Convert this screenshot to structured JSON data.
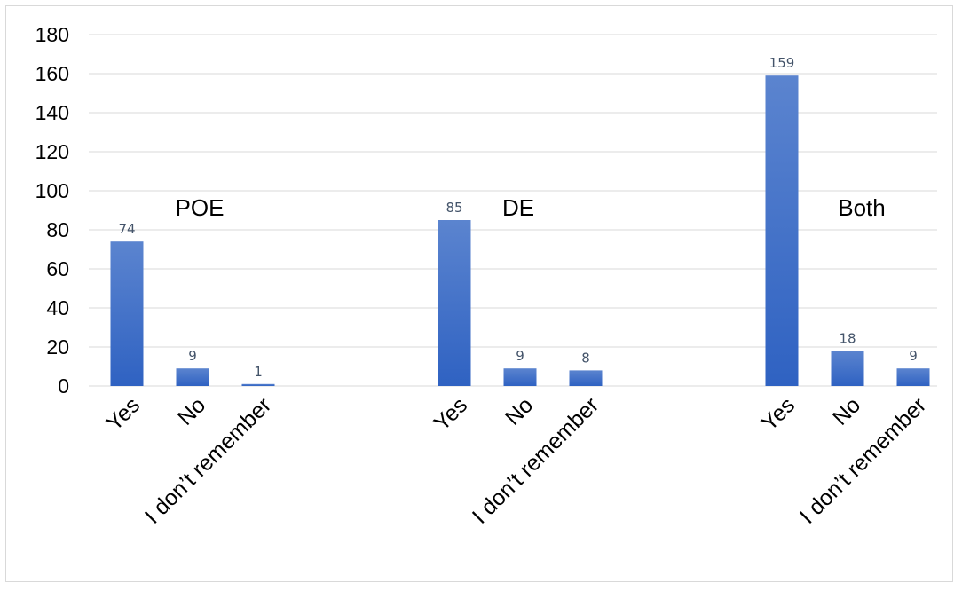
{
  "chart_data": {
    "type": "bar",
    "title": "",
    "xlabel": "",
    "ylabel": "",
    "ylim": [
      0,
      180
    ],
    "yticks": [
      0,
      20,
      40,
      60,
      80,
      100,
      120,
      140,
      160,
      180
    ],
    "grid": true,
    "bar_color": "#4472c4",
    "groups": [
      {
        "name": "POE",
        "categories": [
          "Yes",
          "No",
          "I don’t remember"
        ],
        "values": [
          74,
          9,
          1
        ]
      },
      {
        "name": "DE",
        "categories": [
          "Yes",
          "No",
          "I don’t remember"
        ],
        "values": [
          85,
          9,
          8
        ]
      },
      {
        "name": "Both",
        "categories": [
          "Yes",
          "No",
          "I don’t remember"
        ],
        "values": [
          159,
          18,
          9
        ]
      }
    ]
  }
}
